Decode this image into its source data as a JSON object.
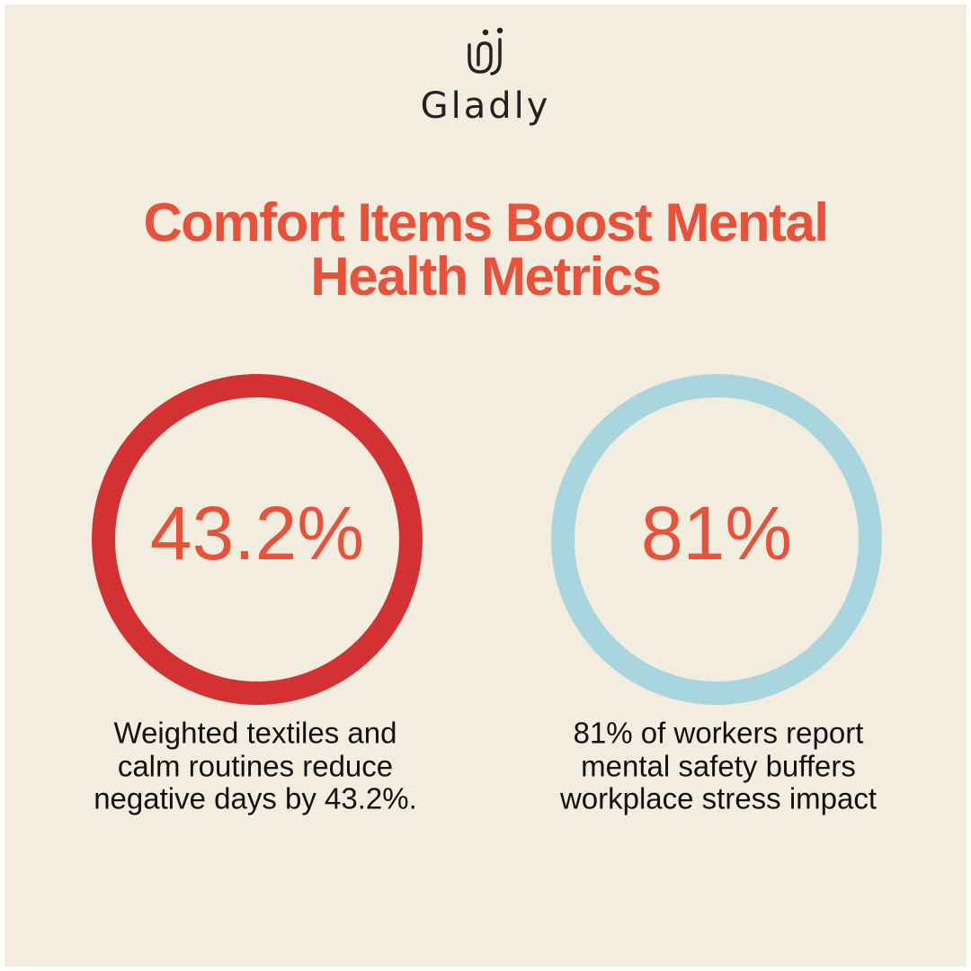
{
  "brand": {
    "name": "Gladly"
  },
  "title": {
    "lines": [
      "Comfort Items Boost Mental",
      "Health Metrics"
    ]
  },
  "stats": [
    {
      "value": "43.2%",
      "description": [
        "Weighted textiles and",
        "calm routines reduce",
        "negative days by 43.2%."
      ]
    },
    {
      "value": "81%",
      "description": [
        "81% of workers report",
        "mental safety buffers",
        "workplace stress impact"
      ]
    }
  ]
}
